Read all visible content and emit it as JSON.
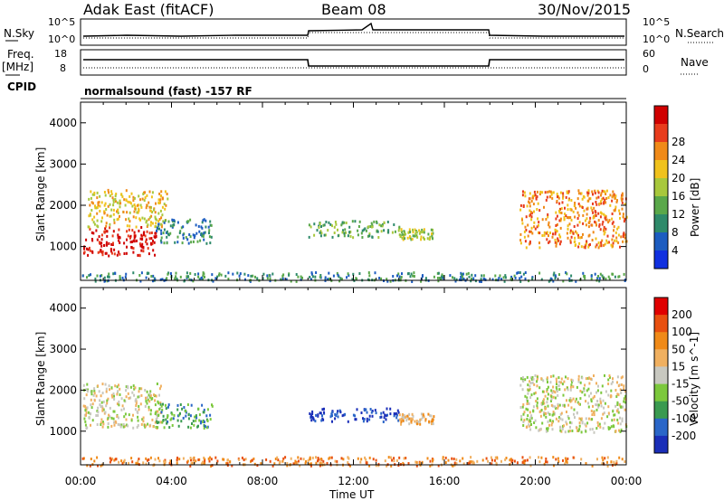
{
  "header": {
    "site": "Adak East (fitACF)",
    "beam": "Beam 08",
    "date": "30/Nov/2015"
  },
  "top_panels": {
    "nsky_label": "N.Sky",
    "nsky_ticks": [
      "10^5",
      "10^0"
    ],
    "nsearch_label": "N.Search",
    "nsearch_ticks": [
      "10^5",
      "10^0"
    ],
    "freq_label": "Freq.",
    "freq_unit": "[MHz]",
    "freq_ticks": [
      "18",
      "8"
    ],
    "nave_label": "Nave",
    "nave_ticks": [
      "60",
      "0"
    ],
    "cpid_label": "CPID",
    "cpid_text": "normalsound (fast) -157 RF"
  },
  "chart_data": [
    {
      "type": "heatmap",
      "panel": "power",
      "xlabel": "",
      "ylabel": "Slant Range [km]",
      "yticks": [
        1000,
        2000,
        3000,
        4000
      ],
      "ylim": [
        180,
        4500
      ],
      "xlim": [
        0,
        24
      ],
      "colorbar": {
        "label": "Power [dB]",
        "ticks": [
          "4",
          "8",
          "12",
          "16",
          "20",
          "24",
          "28"
        ],
        "colors": [
          "#1030e0",
          "#1c5cc0",
          "#2e8a6a",
          "#5aa84a",
          "#a8c83c",
          "#f0c21c",
          "#f08a18",
          "#e83c1c",
          "#d00000"
        ]
      },
      "scatter_regions": [
        {
          "t": [
            0.1,
            3.3
          ],
          "r": [
            800,
            1500
          ],
          "level": 8
        },
        {
          "t": [
            0.3,
            3.8
          ],
          "r": [
            1500,
            2400
          ],
          "level": 5
        },
        {
          "t": [
            3.3,
            5.8
          ],
          "r": [
            1100,
            1700
          ],
          "level": 2
        },
        {
          "t": [
            10.0,
            14.0
          ],
          "r": [
            1250,
            1650
          ],
          "level": 3
        },
        {
          "t": [
            14.0,
            15.5
          ],
          "r": [
            1200,
            1450
          ],
          "level": 4
        },
        {
          "t": [
            19.3,
            24.0
          ],
          "r": [
            1000,
            2400
          ],
          "level": 6
        },
        {
          "t": [
            0.0,
            24.0
          ],
          "r": [
            180,
            400
          ],
          "level": 2
        }
      ]
    },
    {
      "type": "heatmap",
      "panel": "velocity",
      "xlabel": "Time UT",
      "ylabel": "Slant Range [km]",
      "yticks": [
        1000,
        2000,
        3000,
        4000
      ],
      "xticks": [
        "00:00",
        "04:00",
        "08:00",
        "12:00",
        "16:00",
        "20:00",
        "00:00"
      ],
      "ylim": [
        180,
        4500
      ],
      "xlim": [
        0,
        24
      ],
      "colorbar": {
        "label": "Velocity [m s^-1]",
        "ticks": [
          "200",
          "100",
          "50",
          "15",
          "-15",
          "-50",
          "-100",
          "-200"
        ],
        "colors": [
          "#1a2eb8",
          "#2a66c8",
          "#3a9a50",
          "#7cc83c",
          "#c8c8c0",
          "#f0b060",
          "#f08a18",
          "#e85010",
          "#e00000"
        ]
      },
      "scatter_regions": [
        {
          "t": [
            0.1,
            3.5
          ],
          "r": [
            1100,
            2200
          ],
          "level": 4
        },
        {
          "t": [
            3.3,
            5.8
          ],
          "r": [
            1100,
            1700
          ],
          "level": 2
        },
        {
          "t": [
            10.0,
            14.0
          ],
          "r": [
            1250,
            1600
          ],
          "level": 0
        },
        {
          "t": [
            14.0,
            15.5
          ],
          "r": [
            1200,
            1450
          ],
          "level": 5
        },
        {
          "t": [
            19.3,
            24.0
          ],
          "r": [
            1000,
            2400
          ],
          "level": 4
        },
        {
          "t": [
            0.0,
            24.0
          ],
          "r": [
            180,
            400
          ],
          "level": 6
        }
      ]
    }
  ]
}
